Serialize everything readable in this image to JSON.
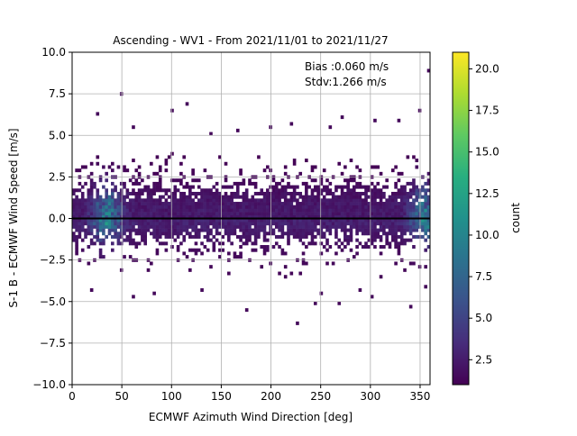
{
  "chart_data": {
    "type": "heatmap",
    "title": "Ascending - WV1 - From 2021/11/01 to 2021/11/27",
    "xlabel": "ECMWF Azimuth Wind Direction [deg]",
    "ylabel": "S-1 B - ECMWF Wind Speed [m/s]",
    "xlim": [
      0,
      360
    ],
    "ylim": [
      -10,
      10
    ],
    "x_ticks": [
      0,
      50,
      100,
      150,
      200,
      250,
      300,
      350
    ],
    "y_ticks": [
      -10.0,
      -7.5,
      -5.0,
      -2.5,
      0.0,
      2.5,
      5.0,
      7.5,
      10.0
    ],
    "x_tick_labels": [
      "0",
      "50",
      "100",
      "150",
      "200",
      "250",
      "300",
      "350"
    ],
    "y_tick_labels": [
      "−10.0",
      "−7.5",
      "−5.0",
      "−2.5",
      "0.0",
      "2.5",
      "5.0",
      "7.5",
      "10.0"
    ],
    "grid": true,
    "x_bin_width_deg": 3,
    "y_bin_width_ms": 0.2,
    "zero_line": 0,
    "annotation": {
      "lines": [
        "Bias :0.060 m/s",
        "Stdv:1.266 m/s"
      ]
    },
    "colorbar": {
      "label": "count",
      "colormap": "viridis",
      "range": [
        1,
        21
      ],
      "ticks": [
        2.5,
        5.0,
        7.5,
        10.0,
        12.5,
        15.0,
        17.5,
        20.0
      ],
      "tick_labels": [
        "2.5",
        "5.0",
        "7.5",
        "10.0",
        "12.5",
        "15.0",
        "17.5",
        "20.0"
      ]
    },
    "distribution": {
      "mean": 0.06,
      "std": 1.266,
      "hotspots_deg": [
        35,
        355
      ],
      "outliers": [
        {
          "x": 48,
          "y": 7.6
        },
        {
          "x": 100,
          "y": 6.4
        },
        {
          "x": 115,
          "y": 6.8
        },
        {
          "x": 25,
          "y": 6.2
        },
        {
          "x": 60,
          "y": 5.6
        },
        {
          "x": 220,
          "y": 5.7
        },
        {
          "x": 258,
          "y": 5.5
        },
        {
          "x": 270,
          "y": 6.0
        },
        {
          "x": 305,
          "y": 5.9
        },
        {
          "x": 327,
          "y": 5.9
        },
        {
          "x": 359,
          "y": 8.8
        },
        {
          "x": 350,
          "y": 6.5
        },
        {
          "x": 200,
          "y": 5.4
        },
        {
          "x": 165,
          "y": 5.3
        },
        {
          "x": 140,
          "y": 5.0
        },
        {
          "x": 225,
          "y": -6.4
        },
        {
          "x": 175,
          "y": -5.6
        },
        {
          "x": 340,
          "y": -5.4
        },
        {
          "x": 355,
          "y": -4.1
        },
        {
          "x": 60,
          "y": -4.7
        },
        {
          "x": 250,
          "y": -4.5
        },
        {
          "x": 300,
          "y": -4.8
        },
        {
          "x": 130,
          "y": -4.4
        },
        {
          "x": 20,
          "y": -4.3
        },
        {
          "x": 82,
          "y": -4.5
        },
        {
          "x": 268,
          "y": -5.2
        },
        {
          "x": 290,
          "y": -4.4
        },
        {
          "x": 245,
          "y": -5.2
        }
      ]
    }
  }
}
